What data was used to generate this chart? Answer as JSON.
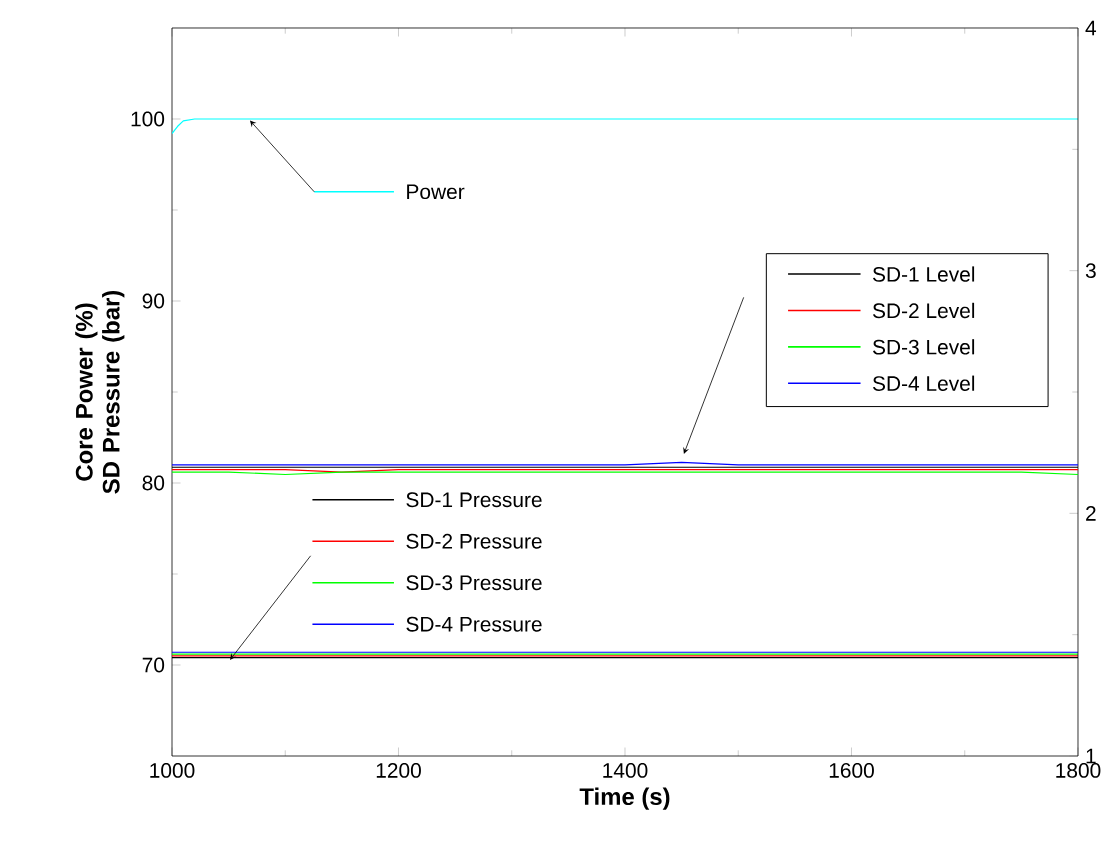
{
  "chart_data": {
    "type": "line",
    "xlabel": "Time (s)",
    "ylabel": "Core Power (%) SD Pressure (bar)",
    "xlim": [
      1000,
      1800
    ],
    "xticks": [
      1000,
      1200,
      1400,
      1600,
      1800
    ],
    "ylim": [
      65,
      105
    ],
    "yticks": [
      70,
      80,
      90,
      100
    ],
    "y2lim": [
      1,
      4
    ],
    "y2ticks": [
      1,
      2,
      3,
      4
    ],
    "legend": "right",
    "grid": false,
    "marker": "none",
    "line_style": "solid",
    "x": [
      1000,
      1050,
      1100,
      1150,
      1200,
      1250,
      1300,
      1350,
      1400,
      1450,
      1500,
      1550,
      1600,
      1650,
      1700,
      1750,
      1800
    ],
    "series": [
      {
        "name": "Power",
        "color": "#00ffff",
        "x": [
          1000,
          1005,
          1010,
          1020,
          1050,
          1100,
          1200,
          1300,
          1400,
          1500,
          1600,
          1700,
          1800
        ],
        "values": [
          99.2,
          99.6,
          99.9,
          100,
          100,
          100,
          100,
          100,
          100,
          100,
          100,
          100,
          100
        ]
      },
      {
        "name": "SD-1 Level",
        "color": "#000000",
        "axis": "y2",
        "values": [
          2.19,
          2.19,
          2.19,
          2.19,
          2.19,
          2.19,
          2.19,
          2.19,
          2.19,
          2.19,
          2.19,
          2.19,
          2.19,
          2.19,
          2.19,
          2.19,
          2.19
        ]
      },
      {
        "name": "SD-2 Level",
        "color": "#ff0000",
        "axis": "y2",
        "values": [
          2.18,
          2.18,
          2.18,
          2.17,
          2.18,
          2.18,
          2.18,
          2.18,
          2.18,
          2.18,
          2.18,
          2.18,
          2.18,
          2.18,
          2.18,
          2.18,
          2.18
        ]
      },
      {
        "name": "SD-3 Level",
        "color": "#00ff00",
        "axis": "y2",
        "values": [
          2.17,
          2.17,
          2.16,
          2.17,
          2.17,
          2.17,
          2.17,
          2.17,
          2.17,
          2.17,
          2.17,
          2.17,
          2.17,
          2.17,
          2.17,
          2.17,
          2.16
        ]
      },
      {
        "name": "SD-4 Level",
        "color": "#0000ff",
        "axis": "y2",
        "values": [
          2.2,
          2.2,
          2.2,
          2.2,
          2.2,
          2.2,
          2.2,
          2.2,
          2.2,
          2.21,
          2.2,
          2.2,
          2.2,
          2.2,
          2.2,
          2.2,
          2.2
        ]
      },
      {
        "name": "SD-1 Pressure",
        "color": "#000000",
        "values": [
          70.4,
          70.4,
          70.4,
          70.4,
          70.4,
          70.4,
          70.4,
          70.4,
          70.4,
          70.4,
          70.4,
          70.4,
          70.4,
          70.4,
          70.4,
          70.4,
          70.4
        ]
      },
      {
        "name": "SD-2 Pressure",
        "color": "#ff0000",
        "values": [
          70.5,
          70.5,
          70.5,
          70.5,
          70.5,
          70.5,
          70.5,
          70.5,
          70.5,
          70.5,
          70.5,
          70.5,
          70.5,
          70.5,
          70.5,
          70.5,
          70.5
        ]
      },
      {
        "name": "SD-3 Pressure",
        "color": "#00ff00",
        "values": [
          70.6,
          70.6,
          70.6,
          70.6,
          70.6,
          70.6,
          70.6,
          70.6,
          70.6,
          70.6,
          70.6,
          70.6,
          70.6,
          70.6,
          70.6,
          70.6,
          70.6
        ]
      },
      {
        "name": "SD-4 Pressure",
        "color": "#0000ff",
        "values": [
          70.7,
          70.7,
          70.7,
          70.7,
          70.7,
          70.7,
          70.7,
          70.7,
          70.7,
          70.7,
          70.7,
          70.7,
          70.7,
          70.7,
          70.7,
          70.7,
          70.7
        ]
      }
    ]
  }
}
